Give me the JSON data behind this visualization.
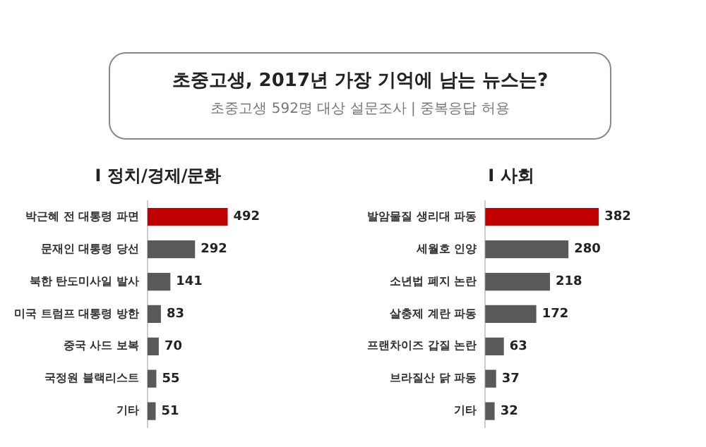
{
  "chart_data": [
    {
      "type": "other",
      "title": "초중고생, 2017년 가장 기억에 남는 뉴스는?",
      "subtitle": "초중고생 592명 대상 설문조사 | 중복응답 허용"
    },
    {
      "type": "bar",
      "orientation": "horizontal",
      "title": "I 정치/경제/문화",
      "categories": [
        "박근혜 전 대통령 파면",
        "문재인 대통령 당선",
        "북한 탄도미사일 발사",
        "미국 트럼프 대통령 방한",
        "중국 사드 보복",
        "국정원 블랙리스트",
        "기타"
      ],
      "values": [
        492,
        292,
        141,
        83,
        70,
        55,
        51
      ],
      "colors": [
        "#c00000",
        "#595959",
        "#595959",
        "#595959",
        "#595959",
        "#595959",
        "#595959"
      ],
      "data_labels": true,
      "grid": false,
      "tick_labels": "y"
    },
    {
      "type": "bar",
      "orientation": "horizontal",
      "title": "I 사회",
      "categories": [
        "발암물질 생리대 파동",
        "세월호 인양",
        "소년법 폐지 논란",
        "살충제 계란 파동",
        "프랜차이즈 갑질 논란",
        "브라질산 닭 파동",
        "기타"
      ],
      "values": [
        382,
        280,
        218,
        172,
        63,
        37,
        32
      ],
      "colors": [
        "#c00000",
        "#595959",
        "#595959",
        "#595959",
        "#595959",
        "#595959",
        "#595959"
      ],
      "data_labels": true,
      "grid": false,
      "tick_labels": "y"
    }
  ]
}
